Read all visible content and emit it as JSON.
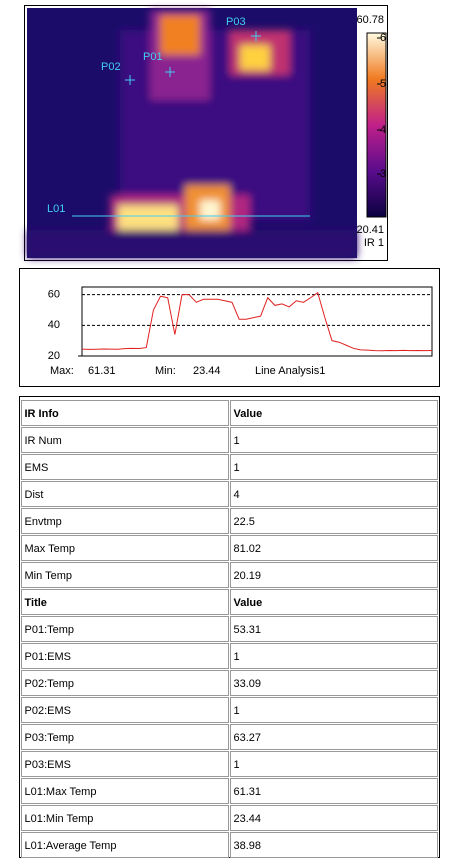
{
  "image": {
    "markers": [
      "P01",
      "P02",
      "P03",
      "L01"
    ],
    "scale_max": "60.78",
    "scale_min": "20.41",
    "scale_name": "IR 1",
    "scale_ticks": [
      "6",
      "5",
      "4",
      "3"
    ]
  },
  "chart_data": {
    "type": "line",
    "title": "Line Analysis1",
    "color": "#e02020",
    "values": [
      24.5,
      24.3,
      24.4,
      24.6,
      24.5,
      24.4,
      24.8,
      25,
      24.9,
      25.5,
      50,
      59,
      58,
      34,
      60,
      60,
      55,
      57,
      57,
      57,
      56,
      55,
      44,
      44,
      45,
      46,
      58,
      53,
      54,
      52,
      56,
      55,
      58,
      61.31,
      45,
      30,
      29,
      27,
      25,
      24,
      23.8,
      23.5,
      23.44,
      23.6,
      23.5,
      23.7,
      23.5,
      23.6,
      23.5,
      23.6
    ],
    "ylim": [
      20,
      65
    ],
    "yticks": [
      20,
      40,
      60
    ],
    "grid": true,
    "stats": [
      {
        "label": "Max:",
        "value": "61.31"
      },
      {
        "label": "Min:",
        "value": "23.44"
      }
    ]
  },
  "table": {
    "sections": [
      {
        "header": [
          "IR Info",
          "Value"
        ],
        "rows": [
          [
            "IR Num",
            "1"
          ],
          [
            "EMS",
            "1"
          ],
          [
            "Dist",
            "4"
          ],
          [
            "Envtmp",
            "22.5"
          ],
          [
            "Max Temp",
            "81.02"
          ],
          [
            "Min Temp",
            "20.19"
          ]
        ]
      },
      {
        "header": [
          "Title",
          "Value"
        ],
        "rows": [
          [
            "P01:Temp",
            "53.31"
          ],
          [
            "P01:EMS",
            "1"
          ],
          [
            "P02:Temp",
            "33.09"
          ],
          [
            "P02:EMS",
            "1"
          ],
          [
            "P03:Temp",
            "63.27"
          ],
          [
            "P03:EMS",
            "1"
          ],
          [
            "L01:Max Temp",
            "61.31"
          ],
          [
            "L01:Min Temp",
            "23.44"
          ],
          [
            "L01:Average Temp",
            "38.98"
          ]
        ]
      }
    ]
  }
}
